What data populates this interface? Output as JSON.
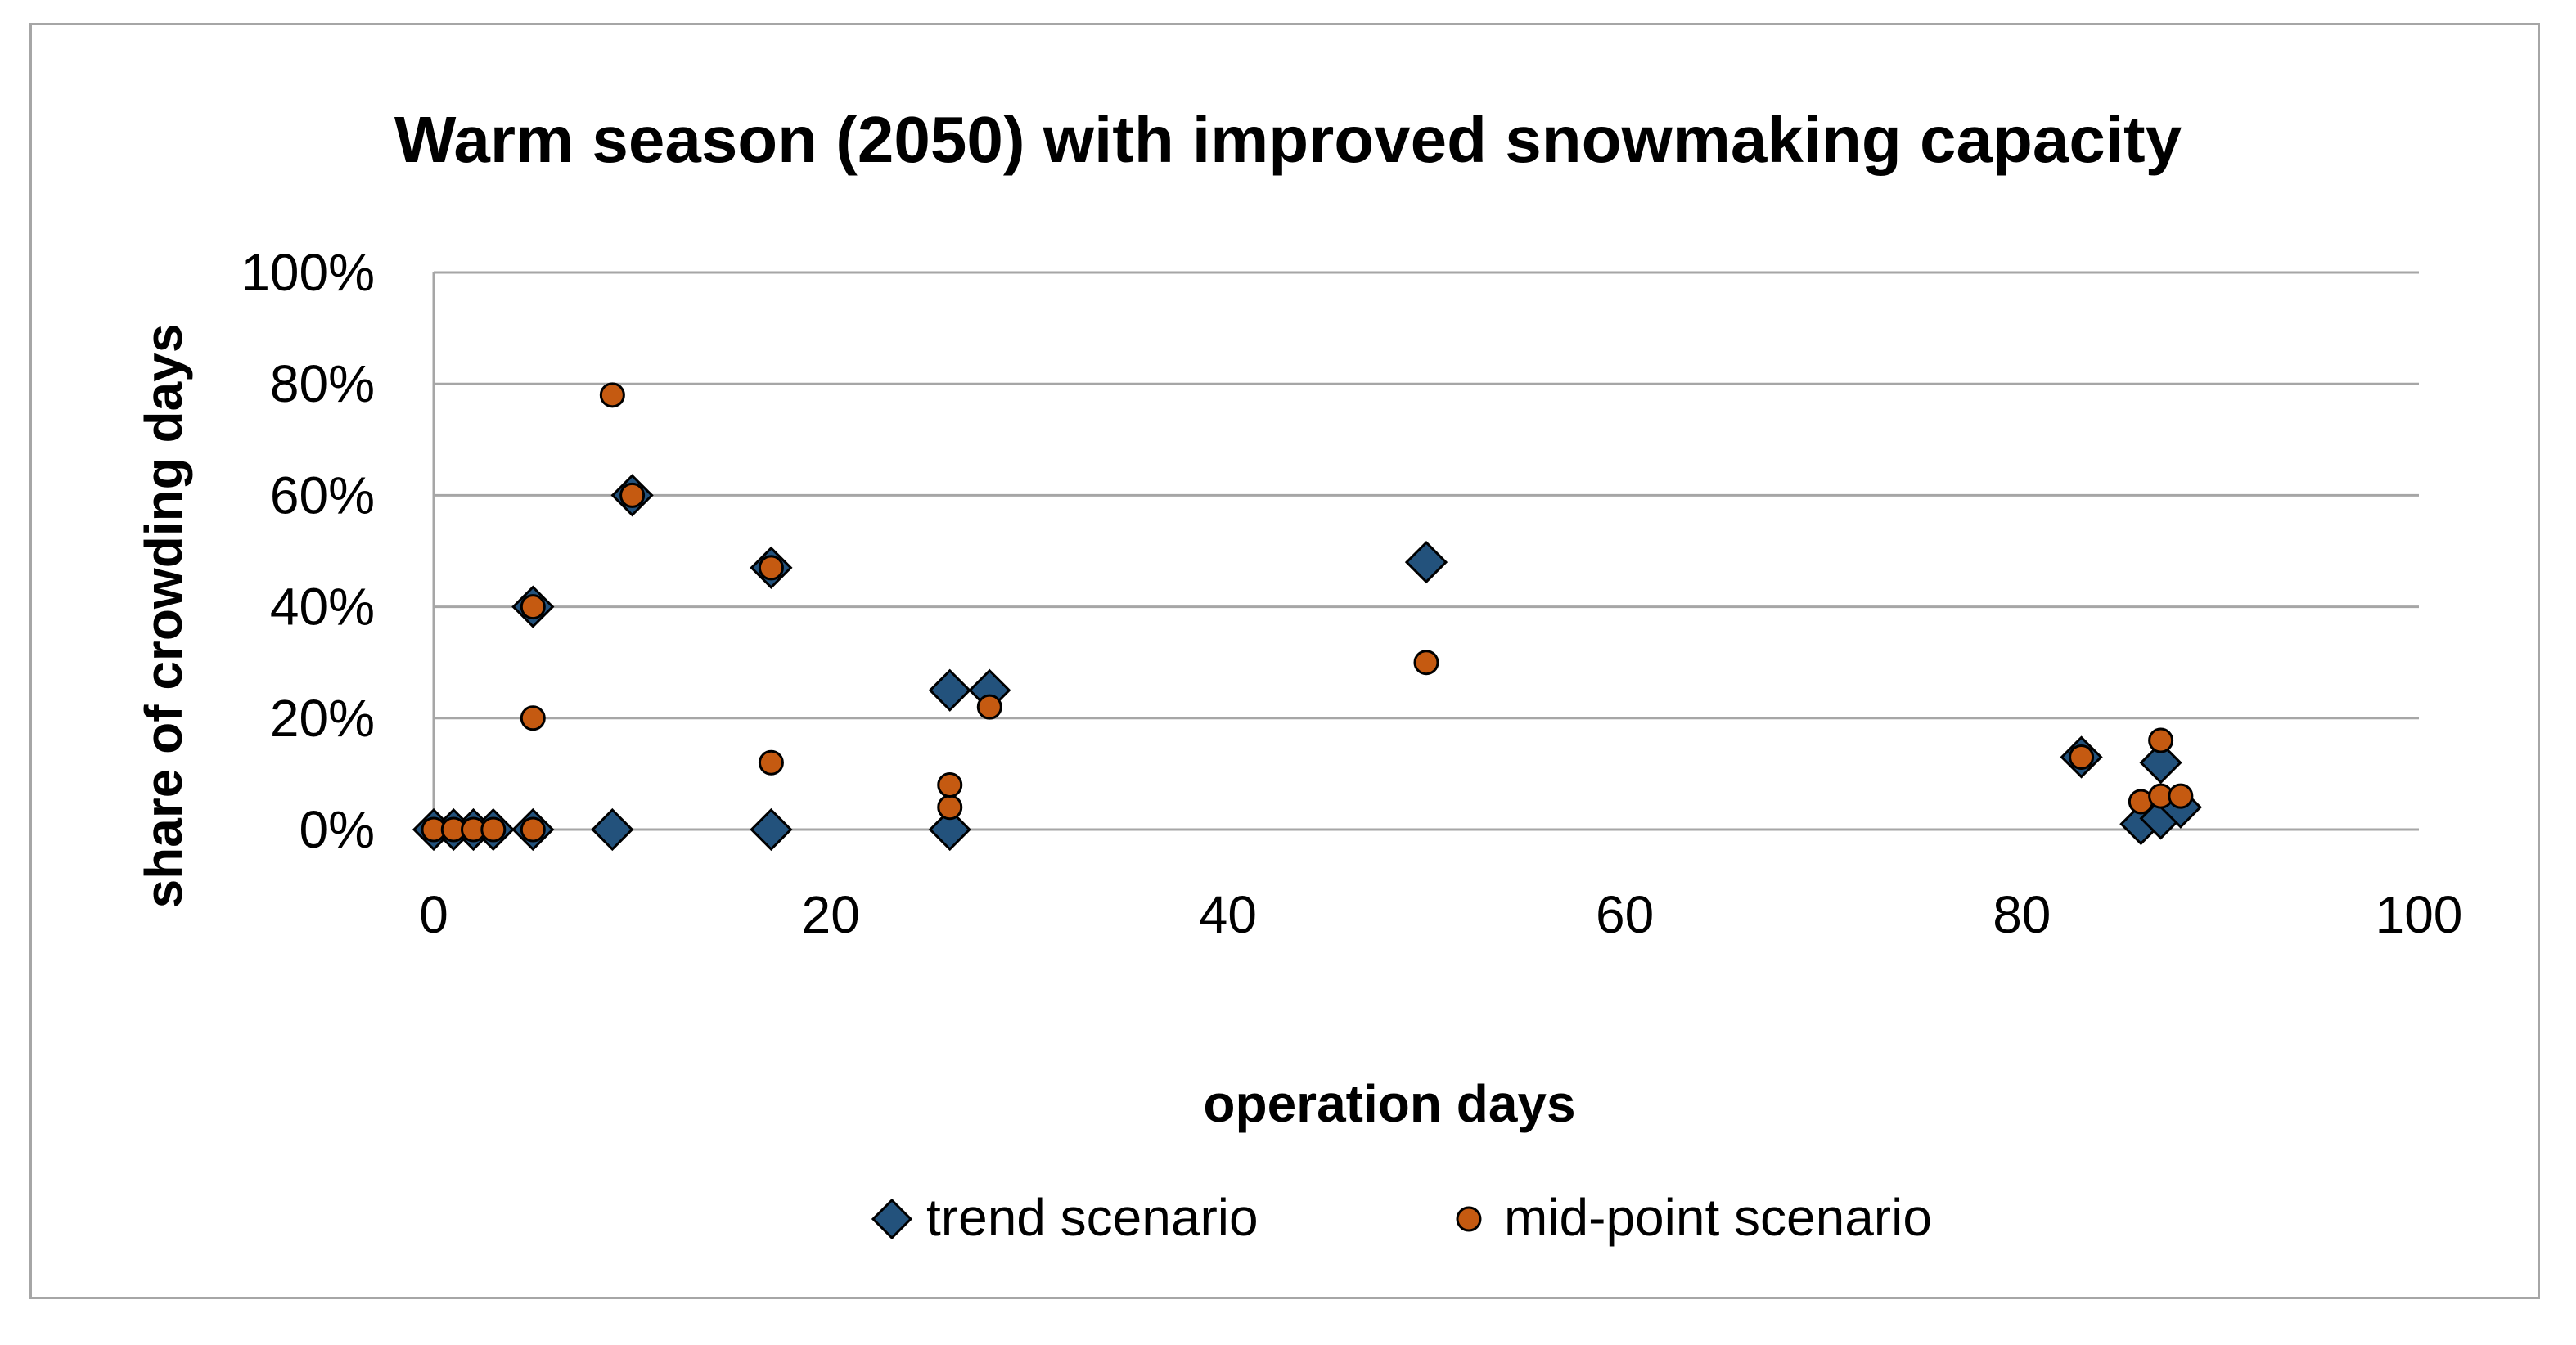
{
  "chart_data": {
    "type": "scatter",
    "title": "Warm season (2050) with improved snowmaking capacity",
    "xlabel": "operation days",
    "ylabel": "share of  crowding days",
    "xlim": [
      0,
      100
    ],
    "ylim": [
      0,
      100
    ],
    "x_ticks": [
      0,
      20,
      40,
      60,
      80,
      100
    ],
    "y_ticks": [
      0,
      20,
      40,
      60,
      80,
      100
    ],
    "x_tick_labels": [
      "0",
      "20",
      "40",
      "60",
      "80",
      "100"
    ],
    "y_tick_labels": [
      "0%",
      "20%",
      "40%",
      "60%",
      "80%",
      "100%"
    ],
    "grid": "horizontal",
    "legend_position": "bottom",
    "series": [
      {
        "name": "trend scenario",
        "marker": "diamond",
        "color": "#23527c",
        "points": [
          {
            "x": 0,
            "y": 0
          },
          {
            "x": 1,
            "y": 0
          },
          {
            "x": 2,
            "y": 0
          },
          {
            "x": 3,
            "y": 0
          },
          {
            "x": 5,
            "y": 0
          },
          {
            "x": 5,
            "y": 40
          },
          {
            "x": 9,
            "y": 0
          },
          {
            "x": 10,
            "y": 60
          },
          {
            "x": 17,
            "y": 0
          },
          {
            "x": 17,
            "y": 47
          },
          {
            "x": 26,
            "y": 0
          },
          {
            "x": 26,
            "y": 25
          },
          {
            "x": 28,
            "y": 25
          },
          {
            "x": 50,
            "y": 48
          },
          {
            "x": 83,
            "y": 13
          },
          {
            "x": 86,
            "y": 1
          },
          {
            "x": 87,
            "y": 2
          },
          {
            "x": 87,
            "y": 12
          },
          {
            "x": 88,
            "y": 4
          }
        ]
      },
      {
        "name": "mid-point scenario",
        "marker": "circle",
        "color": "#c55a11",
        "points": [
          {
            "x": 0,
            "y": 0
          },
          {
            "x": 1,
            "y": 0
          },
          {
            "x": 2,
            "y": 0
          },
          {
            "x": 3,
            "y": 0
          },
          {
            "x": 5,
            "y": 0
          },
          {
            "x": 5,
            "y": 20
          },
          {
            "x": 5,
            "y": 40
          },
          {
            "x": 9,
            "y": 78
          },
          {
            "x": 10,
            "y": 60
          },
          {
            "x": 17,
            "y": 12
          },
          {
            "x": 17,
            "y": 47
          },
          {
            "x": 26,
            "y": 4
          },
          {
            "x": 26,
            "y": 8
          },
          {
            "x": 28,
            "y": 22
          },
          {
            "x": 50,
            "y": 30
          },
          {
            "x": 83,
            "y": 13
          },
          {
            "x": 86,
            "y": 5
          },
          {
            "x": 87,
            "y": 6
          },
          {
            "x": 87,
            "y": 16
          },
          {
            "x": 88,
            "y": 6
          }
        ]
      }
    ]
  }
}
